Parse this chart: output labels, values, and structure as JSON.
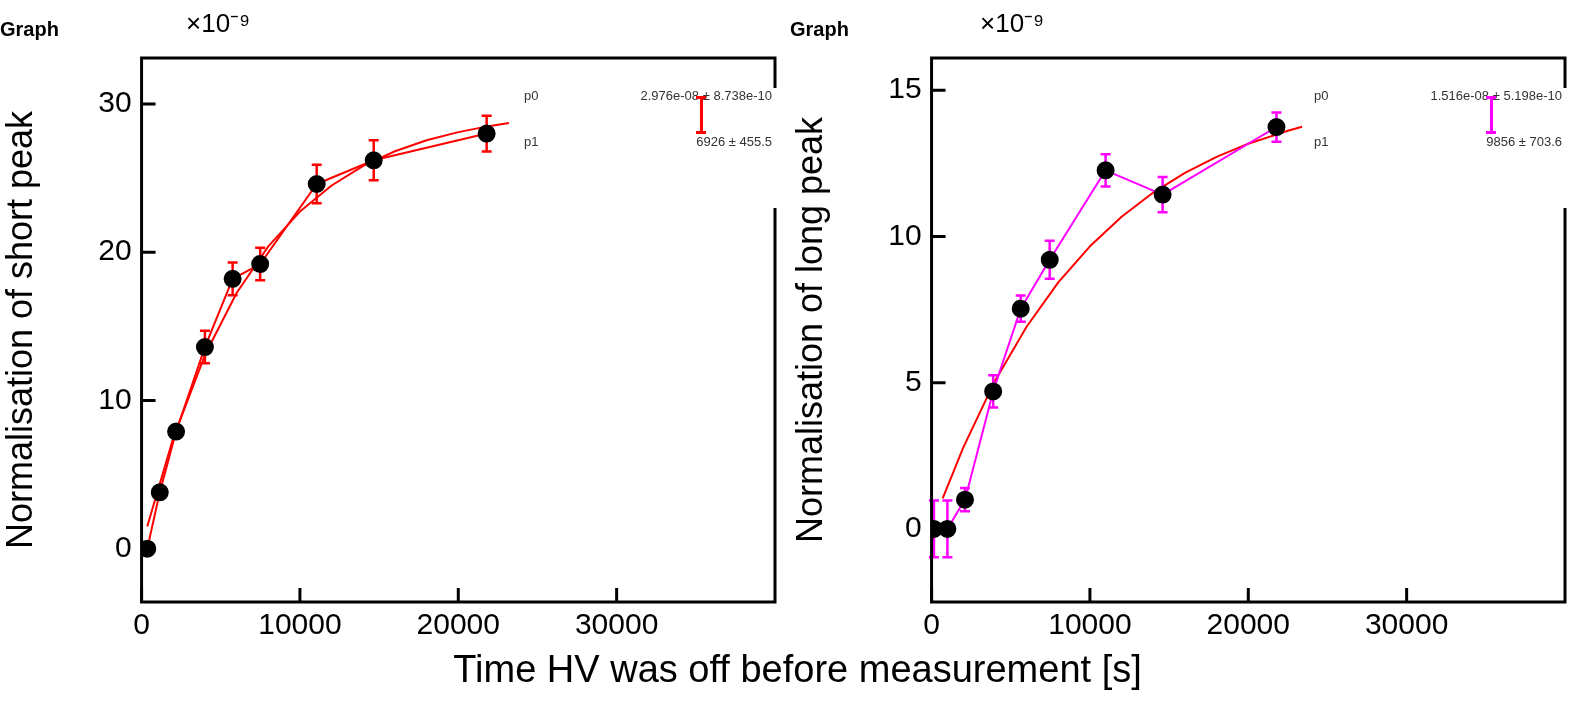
{
  "chart_data": [
    {
      "type": "line",
      "title": "Graph",
      "ylabel": "Normalisation of short peak",
      "xlabel": "Time HV was off before measurement [s]",
      "marker": "circle",
      "grid": false,
      "xlim": [
        0,
        40000
      ],
      "xticks": [
        0,
        10000,
        20000,
        30000
      ],
      "ylim": [
        -3.6,
        33.1
      ],
      "yticks": [
        0,
        10,
        20,
        30
      ],
      "annotations": [
        "×10⁻⁹",
        "p0",
        "2.976e-08 ± 8.738e-10",
        "p1",
        "6926 ± 455.5"
      ],
      "series": [
        {
          "color": "#ff0000",
          "x": [
            360,
            1150,
            2180,
            4000,
            5750,
            7490,
            11060,
            14660,
            21790
          ],
          "values": [
            0,
            3.8,
            7.9,
            13.6,
            18.2,
            19.2,
            24.6,
            26.2,
            28.0
          ],
          "errors": [
            null,
            null,
            null,
            1.1,
            1.1,
            1.1,
            1.3,
            1.35,
            1.2
          ]
        },
        {
          "type": "line",
          "marker": "none",
          "color": "#ff0000",
          "x": [
            360,
            2000,
            4000,
            6000,
            8000,
            10000,
            12000,
            14000,
            16000,
            18000,
            20000,
            22000,
            23200
          ],
          "values": [
            1.5,
            7.46,
            13.06,
            17.25,
            20.39,
            22.74,
            24.5,
            25.82,
            26.81,
            27.55,
            28.1,
            28.52,
            28.72
          ]
        }
      ]
    },
    {
      "type": "line",
      "title": "Graph",
      "ylabel": "Normalisation of long peak",
      "marker": "circle",
      "grid": false,
      "xlim": [
        0,
        40000
      ],
      "xticks": [
        0,
        10000,
        20000,
        30000
      ],
      "ylim": [
        -2.5,
        16.1
      ],
      "yticks": [
        0,
        5,
        10,
        15
      ],
      "annotations": [
        "×10⁻⁹",
        "p0",
        "1.516e-08 ± 5.198e-10",
        "p1",
        "9856 ± 703.6"
      ],
      "series": [
        {
          "color": "#ff00ff",
          "x": [
            150,
            1000,
            2110,
            3890,
            5630,
            7460,
            10990,
            14590,
            21780
          ],
          "values": [
            0,
            0,
            1.0,
            4.7,
            7.53,
            9.2,
            12.26,
            11.43,
            13.74
          ],
          "errors": [
            0.97,
            0.97,
            0.4,
            0.55,
            0.45,
            0.65,
            0.55,
            0.6,
            0.5
          ]
        },
        {
          "type": "line",
          "marker": "none",
          "color": "#ff0000",
          "x": [
            700,
            2000,
            4000,
            6000,
            8000,
            10000,
            12000,
            14000,
            16000,
            18000,
            20000,
            22500,
            23400
          ],
          "values": [
            1.04,
            2.78,
            5.06,
            6.91,
            8.43,
            9.66,
            10.67,
            11.5,
            12.17,
            12.72,
            13.17,
            13.61,
            13.75
          ]
        }
      ]
    }
  ]
}
